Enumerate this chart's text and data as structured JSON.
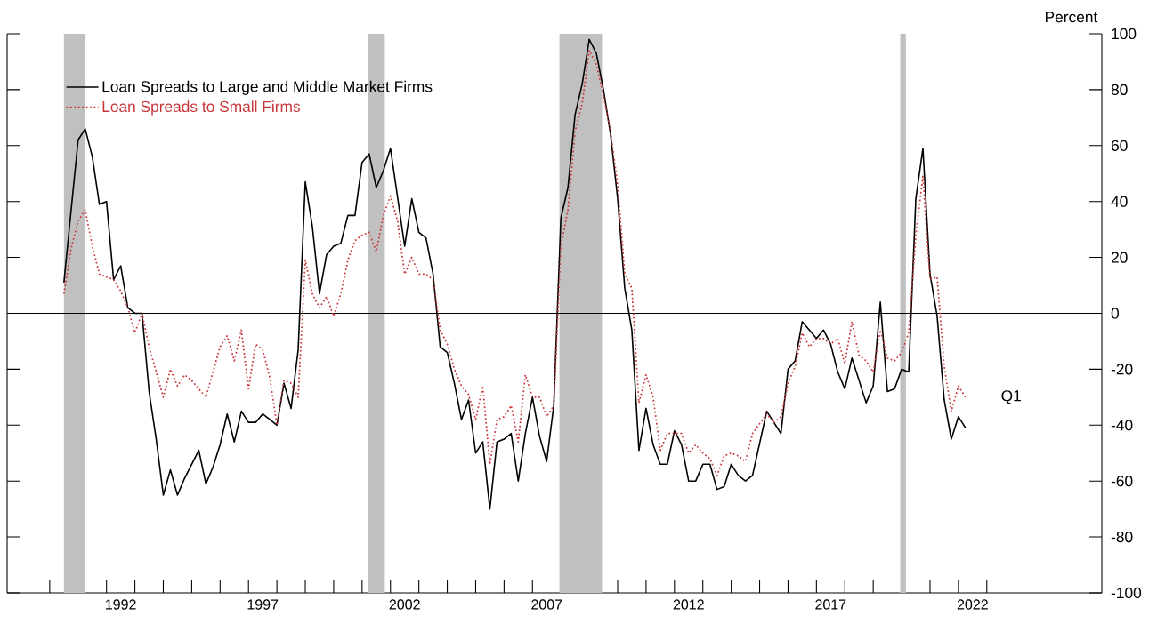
{
  "chart_data": {
    "type": "line",
    "ylabel": "Percent",
    "legend": "top left",
    "grid": false,
    "marker": "none",
    "xlim": [
      1988.5,
      2027.05
    ],
    "ylim": [
      -100,
      100
    ],
    "xticks": [
      {
        "value": 1990,
        "label": null
      },
      {
        "value": 1991,
        "label": null
      },
      {
        "value": 1992,
        "label": null
      },
      {
        "value": 1993,
        "label": null
      },
      {
        "value": 1994,
        "label": null
      },
      {
        "value": 1995,
        "label": null
      },
      {
        "value": 1996,
        "label": null
      },
      {
        "value": 1997,
        "label": null
      },
      {
        "value": 1998,
        "label": null
      },
      {
        "value": 1999,
        "label": null
      },
      {
        "value": 2000,
        "label": null
      },
      {
        "value": 2001,
        "label": null
      },
      {
        "value": 2002,
        "label": null
      },
      {
        "value": 2003,
        "label": null
      },
      {
        "value": 2004,
        "label": null
      },
      {
        "value": 2005,
        "label": null
      },
      {
        "value": 2006,
        "label": null
      },
      {
        "value": 2007,
        "label": null
      },
      {
        "value": 2008,
        "label": null
      },
      {
        "value": 2009,
        "label": null
      },
      {
        "value": 2010,
        "label": null
      },
      {
        "value": 2011,
        "label": null
      },
      {
        "value": 2012,
        "label": null
      },
      {
        "value": 2013,
        "label": null
      },
      {
        "value": 2014,
        "label": null
      },
      {
        "value": 2015,
        "label": null
      },
      {
        "value": 2016,
        "label": null
      },
      {
        "value": 2017,
        "label": null
      },
      {
        "value": 2018,
        "label": null
      },
      {
        "value": 2019,
        "label": null
      },
      {
        "value": 2020,
        "label": null
      },
      {
        "value": 2021,
        "label": null
      },
      {
        "value": 2022,
        "label": null
      },
      {
        "value": 2023,
        "label": null
      },
      {
        "value": 1992.5,
        "label": "1992"
      },
      {
        "value": 1997.5,
        "label": "1997"
      },
      {
        "value": 2002.5,
        "label": "2002"
      },
      {
        "value": 2007.5,
        "label": "2007"
      },
      {
        "value": 2012.5,
        "label": "2012"
      },
      {
        "value": 2017.5,
        "label": "2017"
      },
      {
        "value": 2022.5,
        "label": "2022"
      }
    ],
    "yticks": [
      -100,
      -80,
      -60,
      -40,
      -20,
      0,
      20,
      40,
      60,
      80,
      100
    ],
    "ref_lines": [
      {
        "axis": "y",
        "value": 0,
        "color": "#000000"
      }
    ],
    "bands": [
      {
        "axis": "x",
        "from": 1990.5,
        "to": 1991.25,
        "color": "#c0c0c0"
      },
      {
        "axis": "x",
        "from": 2001.2,
        "to": 2001.8,
        "color": "#c0c0c0"
      },
      {
        "axis": "x",
        "from": 2007.95,
        "to": 2009.45,
        "color": "#c0c0c0"
      },
      {
        "axis": "x",
        "from": 2019.95,
        "to": 2020.15,
        "color": "#c0c0c0"
      }
    ],
    "annotations": [
      "Q1"
    ],
    "series": [
      {
        "name": "Loan Spreads to Large and Middle Market Firms",
        "color": "#000000",
        "line_style": "solid",
        "x": [
          1990.5,
          1991.0,
          1991.25,
          1991.5,
          1991.75,
          1992.0,
          1992.25,
          1992.5,
          1992.75,
          1993.0,
          1993.25,
          1993.5,
          1993.75,
          1994.0,
          1994.25,
          1994.5,
          1994.75,
          1995.25,
          1995.5,
          1995.75,
          1996.0,
          1996.25,
          1996.5,
          1996.75,
          1997.0,
          1997.25,
          1997.5,
          1997.75,
          1998.0,
          1998.25,
          1998.5,
          1998.75,
          1999.0,
          1999.25,
          1999.5,
          1999.75,
          2000.0,
          2000.25,
          2000.5,
          2000.75,
          2001.0,
          2001.25,
          2001.5,
          2001.75,
          2002.0,
          2002.5,
          2002.75,
          2003.0,
          2003.25,
          2003.5,
          2003.75,
          2004.0,
          2004.25,
          2004.5,
          2004.75,
          2005.0,
          2005.25,
          2005.5,
          2005.75,
          2006.0,
          2006.25,
          2006.5,
          2006.75,
          2007.0,
          2007.25,
          2007.5,
          2007.75,
          2008.0,
          2008.25,
          2008.5,
          2008.75,
          2009.0,
          2009.25,
          2009.5,
          2009.75,
          2010.0,
          2010.25,
          2010.5,
          2010.75,
          2011.0,
          2011.25,
          2011.5,
          2011.75,
          2012.0,
          2012.25,
          2012.5,
          2012.75,
          2013.0,
          2013.25,
          2013.5,
          2013.75,
          2014.0,
          2014.25,
          2014.5,
          2014.75,
          2015.25,
          2015.5,
          2015.75,
          2016.0,
          2016.25,
          2016.5,
          2016.75,
          2017.0,
          2017.25,
          2017.5,
          2017.75,
          2018.0,
          2018.25,
          2018.5,
          2018.75,
          2019.0,
          2019.25,
          2019.5,
          2019.75,
          2020.0,
          2020.25,
          2020.5,
          2020.75,
          2021.0,
          2021.25,
          2021.5,
          2021.75,
          2022.0,
          2022.25
        ],
        "values": [
          11,
          62,
          66,
          56,
          39,
          40,
          12,
          17,
          2,
          0,
          0,
          -28,
          -45,
          -65,
          -56,
          -65,
          -59,
          -49,
          -61,
          -55,
          -47,
          -36,
          -46,
          -35,
          -39,
          -39,
          -36,
          -38,
          -40,
          -25,
          -34,
          -13,
          47,
          31,
          7,
          21,
          24,
          25,
          35,
          35,
          54,
          57,
          45,
          51,
          59,
          24,
          41,
          29,
          27,
          14,
          -12,
          -14,
          -25,
          -38,
          -31,
          -50,
          -46,
          -70,
          -46,
          -45,
          -43,
          -60,
          -43,
          -30,
          -44,
          -53,
          -33,
          34,
          45,
          71,
          82,
          98,
          93,
          80,
          64,
          41,
          9,
          -6,
          -49,
          -34,
          -47,
          -54,
          -54,
          -42,
          -47,
          -60,
          -60,
          -54,
          -54,
          -63,
          -62,
          -54,
          -58,
          -60,
          -58,
          -35,
          -39,
          -43,
          -20,
          -17,
          -3,
          -6,
          -9,
          -6,
          -11,
          -21,
          -27,
          -16,
          -24,
          -32,
          -26,
          4,
          -28,
          -27,
          -20,
          -21,
          41,
          59,
          14,
          -1,
          -31,
          -45,
          -37,
          -41
        ]
      },
      {
        "name": "Loan Spreads to Small Firms",
        "color": "#c8373a",
        "line_style": "dotted",
        "x": [
          1990.5,
          1990.75,
          1991.0,
          1991.25,
          1991.5,
          1991.75,
          1992.0,
          1992.25,
          1992.5,
          1992.75,
          1993.0,
          1993.25,
          1993.5,
          1993.75,
          1994.0,
          1994.25,
          1994.5,
          1994.75,
          1995.0,
          1995.5,
          1995.75,
          1996.0,
          1996.25,
          1996.5,
          1996.75,
          1997.0,
          1997.25,
          1997.5,
          1997.75,
          1998.0,
          1998.25,
          1998.5,
          1998.75,
          1999.0,
          1999.25,
          1999.5,
          1999.75,
          2000.0,
          2000.25,
          2000.5,
          2000.75,
          2001.0,
          2001.25,
          2001.5,
          2001.75,
          2002.0,
          2002.25,
          2002.5,
          2002.75,
          2003.0,
          2003.25,
          2003.5,
          2003.75,
          2004.0,
          2004.25,
          2004.5,
          2004.75,
          2005.0,
          2005.25,
          2005.5,
          2005.75,
          2006.0,
          2006.25,
          2006.5,
          2006.75,
          2007.0,
          2007.25,
          2007.5,
          2007.75,
          2008.0,
          2008.25,
          2008.5,
          2008.75,
          2009.0,
          2009.25,
          2009.5,
          2009.75,
          2010.0,
          2010.25,
          2010.5,
          2010.75,
          2011.0,
          2011.25,
          2011.5,
          2011.75,
          2012.0,
          2012.25,
          2012.5,
          2012.75,
          2013.0,
          2013.25,
          2013.5,
          2013.75,
          2014.0,
          2014.25,
          2014.5,
          2014.75,
          2015.25,
          2015.5,
          2015.75,
          2016.0,
          2016.25,
          2016.5,
          2016.75,
          2017.0,
          2017.25,
          2017.5,
          2017.75,
          2018.0,
          2018.25,
          2018.5,
          2018.75,
          2019.0,
          2019.25,
          2019.5,
          2019.75,
          2020.0,
          2020.25,
          2020.5,
          2020.75,
          2021.0,
          2021.25,
          2021.5,
          2021.75,
          2022.0,
          2022.25
        ],
        "values": [
          7,
          23,
          33,
          37,
          24,
          14,
          13,
          12,
          8,
          2,
          -7,
          0,
          -12,
          -21,
          -30,
          -20,
          -26,
          -22,
          -24,
          -30,
          -21,
          -12,
          -8,
          -17,
          -6,
          -27,
          -11,
          -13,
          -23,
          -40,
          -24,
          -25,
          -30,
          19,
          7,
          2,
          6,
          -1,
          7,
          19,
          26,
          28,
          29,
          22,
          35,
          42,
          33,
          14,
          20,
          14,
          14,
          12,
          -6,
          -11,
          -20,
          -26,
          -29,
          -38,
          -26,
          -54,
          -38,
          -37,
          -33,
          -46,
          -22,
          -30,
          -30,
          -37,
          -33,
          24,
          37,
          65,
          75,
          94,
          89,
          78,
          65,
          46,
          14,
          9,
          -32,
          -22,
          -30,
          -49,
          -43,
          -43,
          -43,
          -50,
          -47,
          -50,
          -52,
          -58,
          -51,
          -50,
          -51,
          -53,
          -43,
          -36,
          -39,
          -37,
          -25,
          -19,
          -7,
          -12,
          -9,
          -9,
          -11,
          -9,
          -18,
          -3,
          -15,
          -17,
          -21,
          -6,
          -16,
          -17,
          -14,
          -7,
          28,
          49,
          12,
          13,
          -19,
          -35,
          -26,
          -30
        ]
      }
    ]
  }
}
